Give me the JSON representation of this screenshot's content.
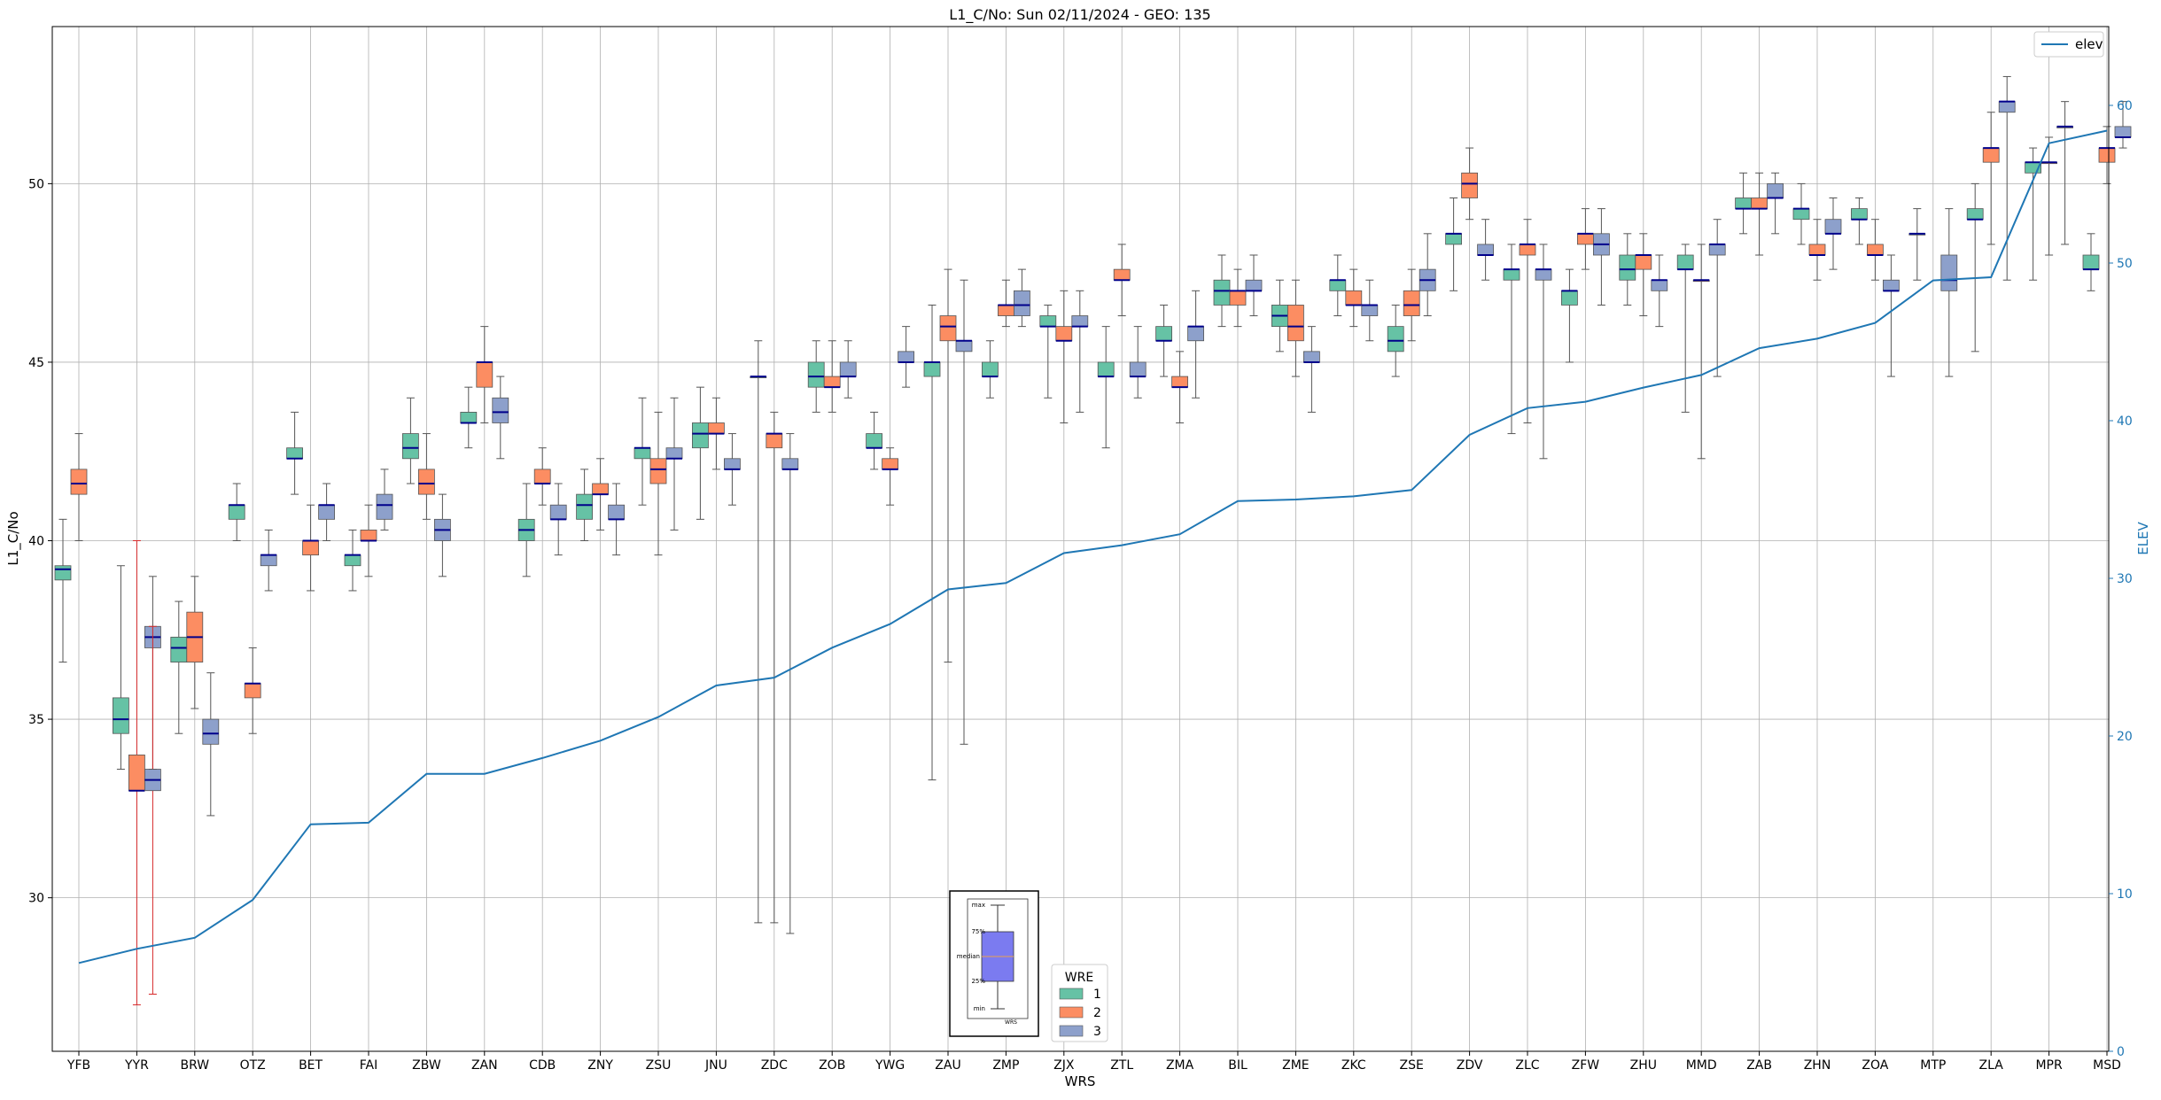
{
  "chart_data": {
    "type": "box",
    "title": "L1_C/No: Sun 02/11/2024 - GEO: 135",
    "xlabel": "WRS",
    "ylabel": "L1_C/No",
    "y2label": "ELEV",
    "ylim": [
      25.7,
      54.4
    ],
    "y2lim": [
      0,
      65
    ],
    "yticks": [
      30,
      35,
      40,
      45,
      50
    ],
    "y2ticks": [
      0,
      10,
      20,
      30,
      40,
      50,
      60
    ],
    "grid": true,
    "categories": [
      "YFB",
      "YYR",
      "BRW",
      "OTZ",
      "BET",
      "FAI",
      "ZBW",
      "ZAN",
      "CDB",
      "ZNY",
      "ZSU",
      "JNU",
      "ZDC",
      "ZOB",
      "YWG",
      "ZAU",
      "ZMP",
      "ZJX",
      "ZTL",
      "ZMA",
      "BIL",
      "ZME",
      "ZKC",
      "ZSE",
      "ZDV",
      "ZLC",
      "ZFW",
      "ZHU",
      "MMD",
      "ZAB",
      "ZHN",
      "ZOA",
      "MTP",
      "ZLA",
      "MPR",
      "MSD"
    ],
    "colors": {
      "1": "#66c2a5",
      "2": "#fc8d62",
      "3": "#8da0cb",
      "median": "#00008b",
      "elev": "#1f77b4",
      "whisker": "#555555",
      "anomaly_whisker": "#d62728"
    },
    "legend": {
      "title": "WRE",
      "entries": [
        "1",
        "2",
        "3"
      ],
      "placement": "lower-center"
    },
    "elev_legend": {
      "label": "elev",
      "placement": "upper-right"
    },
    "inset_key": {
      "labels": [
        "max",
        "75%",
        "median",
        "25%",
        "min"
      ],
      "xlabel": "WRS"
    },
    "boxes": [
      {
        "wrs": "YFB",
        "wre": "1",
        "min": 36.6,
        "q1": 38.9,
        "med": 39.2,
        "q3": 39.3,
        "max": 40.6
      },
      {
        "wrs": "YFB",
        "wre": "2",
        "min": 40.0,
        "q1": 41.3,
        "med": 41.6,
        "q3": 42.0,
        "max": 43.0
      },
      {
        "wrs": "YYR",
        "wre": "3",
        "min": 33.6,
        "q1": 37.0,
        "med": 37.3,
        "q3": 37.6,
        "max": 39.0
      },
      {
        "wrs": "YYR",
        "wre": "1",
        "min": 33.6,
        "q1": 34.6,
        "med": 35.0,
        "q3": 35.6,
        "max": 39.3
      },
      {
        "wrs": "YYR",
        "wre": "2",
        "min": 27.0,
        "q1": 33.0,
        "med": 33.0,
        "q3": 34.0,
        "max": 40.0,
        "anomaly": true
      },
      {
        "wrs": "YYR",
        "wre": "3",
        "min": 27.3,
        "q1": 33.0,
        "med": 33.3,
        "q3": 33.6,
        "max": 37.6,
        "anomaly": true
      },
      {
        "wrs": "BRW",
        "wre": "1",
        "min": 34.6,
        "q1": 36.6,
        "med": 37.0,
        "q3": 37.3,
        "max": 38.3
      },
      {
        "wrs": "BRW",
        "wre": "2",
        "min": 35.3,
        "q1": 36.6,
        "med": 37.3,
        "q3": 38.0,
        "max": 39.0
      },
      {
        "wrs": "BRW",
        "wre": "3",
        "min": 32.3,
        "q1": 34.3,
        "med": 34.6,
        "q3": 35.0,
        "max": 36.3
      },
      {
        "wrs": "OTZ",
        "wre": "1",
        "min": 40.0,
        "q1": 40.6,
        "med": 41.0,
        "q3": 41.0,
        "max": 41.6
      },
      {
        "wrs": "OTZ",
        "wre": "2",
        "min": 34.6,
        "q1": 35.6,
        "med": 36.0,
        "q3": 36.0,
        "max": 37.0
      },
      {
        "wrs": "OTZ",
        "wre": "3",
        "min": 38.6,
        "q1": 39.3,
        "med": 39.6,
        "q3": 39.6,
        "max": 40.3
      },
      {
        "wrs": "BET",
        "wre": "2",
        "min": 38.6,
        "q1": 39.6,
        "med": 40.0,
        "q3": 40.0,
        "max": 41.0
      },
      {
        "wrs": "BET",
        "wre": "1",
        "min": 41.3,
        "q1": 42.3,
        "med": 42.3,
        "q3": 42.6,
        "max": 43.6
      },
      {
        "wrs": "BET",
        "wre": "3",
        "min": 40.0,
        "q1": 40.6,
        "med": 41.0,
        "q3": 41.0,
        "max": 41.6
      },
      {
        "wrs": "FAI",
        "wre": "1",
        "min": 38.6,
        "q1": 39.3,
        "med": 39.6,
        "q3": 39.6,
        "max": 40.3
      },
      {
        "wrs": "FAI",
        "wre": "2",
        "min": 39.0,
        "q1": 40.0,
        "med": 40.0,
        "q3": 40.3,
        "max": 41.0
      },
      {
        "wrs": "FAI",
        "wre": "3",
        "min": 40.3,
        "q1": 40.6,
        "med": 41.0,
        "q3": 41.3,
        "max": 42.0
      },
      {
        "wrs": "ZBW",
        "wre": "1",
        "min": 41.6,
        "q1": 42.3,
        "med": 42.6,
        "q3": 43.0,
        "max": 44.0
      },
      {
        "wrs": "ZBW",
        "wre": "2",
        "min": 40.6,
        "q1": 41.3,
        "med": 41.6,
        "q3": 42.0,
        "max": 43.0
      },
      {
        "wrs": "ZBW",
        "wre": "3",
        "min": 39.0,
        "q1": 40.0,
        "med": 40.3,
        "q3": 40.6,
        "max": 41.3
      },
      {
        "wrs": "ZAN",
        "wre": "1",
        "min": 42.6,
        "q1": 43.3,
        "med": 43.3,
        "q3": 43.6,
        "max": 44.3
      },
      {
        "wrs": "ZAN",
        "wre": "2",
        "min": 43.3,
        "q1": 44.3,
        "med": 45.0,
        "q3": 45.0,
        "max": 46.0
      },
      {
        "wrs": "ZAN",
        "wre": "3",
        "min": 42.3,
        "q1": 43.3,
        "med": 43.6,
        "q3": 44.0,
        "max": 44.6
      },
      {
        "wrs": "CDB",
        "wre": "1",
        "min": 39.0,
        "q1": 40.0,
        "med": 40.3,
        "q3": 40.6,
        "max": 41.6
      },
      {
        "wrs": "CDB",
        "wre": "2",
        "min": 41.0,
        "q1": 41.6,
        "med": 41.6,
        "q3": 42.0,
        "max": 42.6
      },
      {
        "wrs": "CDB",
        "wre": "3",
        "min": 39.6,
        "q1": 40.6,
        "med": 40.6,
        "q3": 41.0,
        "max": 41.6
      },
      {
        "wrs": "ZNY",
        "wre": "1",
        "min": 40.0,
        "q1": 40.6,
        "med": 41.0,
        "q3": 41.3,
        "max": 42.0
      },
      {
        "wrs": "ZNY",
        "wre": "2",
        "min": 40.3,
        "q1": 41.3,
        "med": 41.3,
        "q3": 41.6,
        "max": 42.3
      },
      {
        "wrs": "ZNY",
        "wre": "3",
        "min": 39.6,
        "q1": 40.6,
        "med": 40.6,
        "q3": 41.0,
        "max": 41.6
      },
      {
        "wrs": "ZSU",
        "wre": "1",
        "min": 41.0,
        "q1": 42.3,
        "med": 42.6,
        "q3": 42.6,
        "max": 44.0
      },
      {
        "wrs": "ZSU",
        "wre": "2",
        "min": 39.6,
        "q1": 41.6,
        "med": 42.0,
        "q3": 42.3,
        "max": 43.6
      },
      {
        "wrs": "ZSU",
        "wre": "3",
        "min": 40.3,
        "q1": 42.3,
        "med": 42.3,
        "q3": 42.6,
        "max": 44.0
      },
      {
        "wrs": "JNU",
        "wre": "1",
        "min": 40.6,
        "q1": 42.6,
        "med": 43.0,
        "q3": 43.3,
        "max": 44.3
      },
      {
        "wrs": "JNU",
        "wre": "2",
        "min": 42.0,
        "q1": 43.0,
        "med": 43.0,
        "q3": 43.3,
        "max": 44.0
      },
      {
        "wrs": "JNU",
        "wre": "3",
        "min": 41.0,
        "q1": 42.0,
        "med": 42.0,
        "q3": 42.3,
        "max": 43.0
      },
      {
        "wrs": "ZDC",
        "wre": "1",
        "min": 29.3,
        "q1": 44.6,
        "med": 44.6,
        "q3": 44.6,
        "max": 45.6
      },
      {
        "wrs": "ZDC",
        "wre": "2",
        "min": 29.3,
        "q1": 42.6,
        "med": 43.0,
        "q3": 43.0,
        "max": 43.6
      },
      {
        "wrs": "ZDC",
        "wre": "3",
        "min": 29.0,
        "q1": 42.0,
        "med": 42.0,
        "q3": 42.3,
        "max": 43.0
      },
      {
        "wrs": "ZOB",
        "wre": "1",
        "min": 43.6,
        "q1": 44.3,
        "med": 44.6,
        "q3": 45.0,
        "max": 45.6
      },
      {
        "wrs": "ZOB",
        "wre": "2",
        "min": 43.6,
        "q1": 44.3,
        "med": 44.3,
        "q3": 44.6,
        "max": 45.6
      },
      {
        "wrs": "ZOB",
        "wre": "3",
        "min": 44.0,
        "q1": 44.6,
        "med": 44.6,
        "q3": 45.0,
        "max": 45.6
      },
      {
        "wrs": "YWG",
        "wre": "1",
        "min": 42.0,
        "q1": 42.6,
        "med": 42.6,
        "q3": 43.0,
        "max": 43.6
      },
      {
        "wrs": "YWG",
        "wre": "2",
        "min": 41.0,
        "q1": 42.0,
        "med": 42.0,
        "q3": 42.3,
        "max": 42.6
      },
      {
        "wrs": "YWG",
        "wre": "3",
        "min": 44.3,
        "q1": 45.0,
        "med": 45.0,
        "q3": 45.3,
        "max": 46.0
      },
      {
        "wrs": "ZAU",
        "wre": "1",
        "min": 33.3,
        "q1": 44.6,
        "med": 45.0,
        "q3": 45.0,
        "max": 46.6
      },
      {
        "wrs": "ZAU",
        "wre": "2",
        "min": 36.6,
        "q1": 45.6,
        "med": 46.0,
        "q3": 46.3,
        "max": 47.6
      },
      {
        "wrs": "ZAU",
        "wre": "3",
        "min": 34.3,
        "q1": 45.3,
        "med": 45.6,
        "q3": 45.6,
        "max": 47.3
      },
      {
        "wrs": "ZMP",
        "wre": "1",
        "min": 44.0,
        "q1": 44.6,
        "med": 44.6,
        "q3": 45.0,
        "max": 45.6
      },
      {
        "wrs": "ZMP",
        "wre": "2",
        "min": 46.0,
        "q1": 46.3,
        "med": 46.6,
        "q3": 46.6,
        "max": 47.3
      },
      {
        "wrs": "ZMP",
        "wre": "3",
        "min": 46.0,
        "q1": 46.3,
        "med": 46.6,
        "q3": 47.0,
        "max": 47.6
      },
      {
        "wrs": "ZJX",
        "wre": "1",
        "min": 44.0,
        "q1": 46.0,
        "med": 46.0,
        "q3": 46.3,
        "max": 46.6
      },
      {
        "wrs": "ZJX",
        "wre": "2",
        "min": 43.3,
        "q1": 45.6,
        "med": 45.6,
        "q3": 46.0,
        "max": 47.0
      },
      {
        "wrs": "ZJX",
        "wre": "3",
        "min": 43.6,
        "q1": 46.0,
        "med": 46.0,
        "q3": 46.3,
        "max": 47.0
      },
      {
        "wrs": "ZTL",
        "wre": "1",
        "min": 42.6,
        "q1": 44.6,
        "med": 44.6,
        "q3": 45.0,
        "max": 46.0
      },
      {
        "wrs": "ZTL",
        "wre": "2",
        "min": 46.3,
        "q1": 47.3,
        "med": 47.3,
        "q3": 47.6,
        "max": 48.3
      },
      {
        "wrs": "ZTL",
        "wre": "3",
        "min": 44.0,
        "q1": 44.6,
        "med": 44.6,
        "q3": 45.0,
        "max": 46.0
      },
      {
        "wrs": "ZMA",
        "wre": "1",
        "min": 44.6,
        "q1": 45.6,
        "med": 45.6,
        "q3": 46.0,
        "max": 46.6
      },
      {
        "wrs": "ZMA",
        "wre": "2",
        "min": 43.3,
        "q1": 44.3,
        "med": 44.3,
        "q3": 44.6,
        "max": 45.3
      },
      {
        "wrs": "ZMA",
        "wre": "3",
        "min": 44.0,
        "q1": 45.6,
        "med": 46.0,
        "q3": 46.0,
        "max": 47.0
      },
      {
        "wrs": "BIL",
        "wre": "1",
        "min": 46.0,
        "q1": 46.6,
        "med": 47.0,
        "q3": 47.3,
        "max": 48.0
      },
      {
        "wrs": "BIL",
        "wre": "2",
        "min": 46.0,
        "q1": 46.6,
        "med": 47.0,
        "q3": 47.0,
        "max": 47.6
      },
      {
        "wrs": "BIL",
        "wre": "3",
        "min": 46.3,
        "q1": 47.0,
        "med": 47.0,
        "q3": 47.3,
        "max": 48.0
      },
      {
        "wrs": "ZME",
        "wre": "1",
        "min": 45.3,
        "q1": 46.0,
        "med": 46.3,
        "q3": 46.6,
        "max": 47.3
      },
      {
        "wrs": "ZME",
        "wre": "2",
        "min": 44.6,
        "q1": 45.6,
        "med": 46.0,
        "q3": 46.6,
        "max": 47.3
      },
      {
        "wrs": "ZME",
        "wre": "3",
        "min": 43.6,
        "q1": 45.0,
        "med": 45.0,
        "q3": 45.3,
        "max": 46.0
      },
      {
        "wrs": "ZKC",
        "wre": "1",
        "min": 46.3,
        "q1": 47.0,
        "med": 47.3,
        "q3": 47.3,
        "max": 48.0
      },
      {
        "wrs": "ZKC",
        "wre": "2",
        "min": 46.0,
        "q1": 46.6,
        "med": 46.6,
        "q3": 47.0,
        "max": 47.6
      },
      {
        "wrs": "ZKC",
        "wre": "3",
        "min": 45.6,
        "q1": 46.3,
        "med": 46.6,
        "q3": 46.6,
        "max": 47.3
      },
      {
        "wrs": "ZSE",
        "wre": "1",
        "min": 44.6,
        "q1": 45.3,
        "med": 45.6,
        "q3": 46.0,
        "max": 46.6
      },
      {
        "wrs": "ZSE",
        "wre": "2",
        "min": 45.6,
        "q1": 46.3,
        "med": 46.6,
        "q3": 47.0,
        "max": 47.6
      },
      {
        "wrs": "ZSE",
        "wre": "3",
        "min": 46.3,
        "q1": 47.0,
        "med": 47.3,
        "q3": 47.6,
        "max": 48.6
      },
      {
        "wrs": "ZDV",
        "wre": "1",
        "min": 47.0,
        "q1": 48.3,
        "med": 48.6,
        "q3": 48.6,
        "max": 49.6
      },
      {
        "wrs": "ZDV",
        "wre": "2",
        "min": 49.0,
        "q1": 49.6,
        "med": 50.0,
        "q3": 50.3,
        "max": 51.0
      },
      {
        "wrs": "ZDV",
        "wre": "3",
        "min": 47.3,
        "q1": 48.0,
        "med": 48.0,
        "q3": 48.3,
        "max": 49.0
      },
      {
        "wrs": "ZLC",
        "wre": "1",
        "min": 43.0,
        "q1": 47.3,
        "med": 47.6,
        "q3": 47.6,
        "max": 48.3
      },
      {
        "wrs": "ZLC",
        "wre": "2",
        "min": 43.3,
        "q1": 48.0,
        "med": 48.3,
        "q3": 48.3,
        "max": 49.0
      },
      {
        "wrs": "ZLC",
        "wre": "3",
        "min": 42.3,
        "q1": 47.3,
        "med": 47.6,
        "q3": 47.6,
        "max": 48.3
      },
      {
        "wrs": "ZFW",
        "wre": "1",
        "min": 45.0,
        "q1": 46.6,
        "med": 47.0,
        "q3": 47.0,
        "max": 47.6
      },
      {
        "wrs": "ZFW",
        "wre": "2",
        "min": 47.6,
        "q1": 48.3,
        "med": 48.6,
        "q3": 48.6,
        "max": 49.3
      },
      {
        "wrs": "ZFW",
        "wre": "3",
        "min": 46.6,
        "q1": 48.0,
        "med": 48.3,
        "q3": 48.6,
        "max": 49.3
      },
      {
        "wrs": "ZHU",
        "wre": "1",
        "min": 46.6,
        "q1": 47.3,
        "med": 47.6,
        "q3": 48.0,
        "max": 48.6
      },
      {
        "wrs": "ZHU",
        "wre": "2",
        "min": 46.3,
        "q1": 47.6,
        "med": 48.0,
        "q3": 48.0,
        "max": 48.6
      },
      {
        "wrs": "ZHU",
        "wre": "3",
        "min": 46.0,
        "q1": 47.0,
        "med": 47.3,
        "q3": 47.3,
        "max": 48.0
      },
      {
        "wrs": "MMD",
        "wre": "1",
        "min": 43.6,
        "q1": 47.6,
        "med": 47.6,
        "q3": 48.0,
        "max": 48.3
      },
      {
        "wrs": "MMD",
        "wre": "2",
        "min": 42.3,
        "q1": 47.3,
        "med": 47.3,
        "q3": 47.3,
        "max": 48.3
      },
      {
        "wrs": "MMD",
        "wre": "3",
        "min": 44.6,
        "q1": 48.0,
        "med": 48.3,
        "q3": 48.3,
        "max": 49.0
      },
      {
        "wrs": "ZAB",
        "wre": "1",
        "min": 48.6,
        "q1": 49.3,
        "med": 49.3,
        "q3": 49.6,
        "max": 50.3
      },
      {
        "wrs": "ZAB",
        "wre": "2",
        "min": 48.0,
        "q1": 49.3,
        "med": 49.3,
        "q3": 49.6,
        "max": 50.3
      },
      {
        "wrs": "ZAB",
        "wre": "3",
        "min": 48.6,
        "q1": 49.6,
        "med": 49.6,
        "q3": 50.0,
        "max": 50.3
      },
      {
        "wrs": "ZHN",
        "wre": "1",
        "min": 48.3,
        "q1": 49.0,
        "med": 49.3,
        "q3": 49.3,
        "max": 50.0
      },
      {
        "wrs": "ZHN",
        "wre": "2",
        "min": 47.3,
        "q1": 48.0,
        "med": 48.0,
        "q3": 48.3,
        "max": 49.0
      },
      {
        "wrs": "ZHN",
        "wre": "3",
        "min": 47.6,
        "q1": 48.6,
        "med": 48.6,
        "q3": 49.0,
        "max": 49.6
      },
      {
        "wrs": "ZOA",
        "wre": "1",
        "min": 48.3,
        "q1": 49.0,
        "med": 49.0,
        "q3": 49.3,
        "max": 49.6
      },
      {
        "wrs": "ZOA",
        "wre": "2",
        "min": 47.3,
        "q1": 48.0,
        "med": 48.0,
        "q3": 48.3,
        "max": 49.0
      },
      {
        "wrs": "ZOA",
        "wre": "3",
        "min": 44.6,
        "q1": 47.0,
        "med": 47.0,
        "q3": 47.3,
        "max": 48.0
      },
      {
        "wrs": "MTP",
        "wre": "1",
        "min": 47.3,
        "q1": 48.6,
        "med": 48.6,
        "q3": 48.6,
        "max": 49.3
      },
      {
        "wrs": "MTP",
        "wre": "3",
        "min": 44.6,
        "q1": 47.0,
        "med": 47.3,
        "q3": 48.0,
        "max": 49.3
      },
      {
        "wrs": "ZLA",
        "wre": "1",
        "min": 45.3,
        "q1": 49.0,
        "med": 49.0,
        "q3": 49.3,
        "max": 50.0
      },
      {
        "wrs": "ZLA",
        "wre": "2",
        "min": 48.3,
        "q1": 50.6,
        "med": 51.0,
        "q3": 51.0,
        "max": 52.0
      },
      {
        "wrs": "ZLA",
        "wre": "3",
        "min": 47.3,
        "q1": 52.0,
        "med": 52.3,
        "q3": 52.3,
        "max": 53.0
      },
      {
        "wrs": "MPR",
        "wre": "1",
        "min": 47.3,
        "q1": 50.3,
        "med": 50.6,
        "q3": 50.6,
        "max": 51.0
      },
      {
        "wrs": "MPR",
        "wre": "2",
        "min": 48.0,
        "q1": 50.6,
        "med": 50.6,
        "q3": 50.6,
        "max": 51.3
      },
      {
        "wrs": "MPR",
        "wre": "3",
        "min": 48.3,
        "q1": 51.6,
        "med": 51.6,
        "q3": 51.6,
        "max": 52.3
      },
      {
        "wrs": "MSD",
        "wre": "1",
        "min": 47.0,
        "q1": 47.6,
        "med": 47.6,
        "q3": 48.0,
        "max": 48.6
      },
      {
        "wrs": "MSD",
        "wre": "2",
        "min": 50.0,
        "q1": 50.6,
        "med": 51.0,
        "q3": 51.0,
        "max": 51.6
      },
      {
        "wrs": "MSD",
        "wre": "3",
        "min": 51.0,
        "q1": 51.3,
        "med": 51.3,
        "q3": 51.6,
        "max": 52.3
      }
    ],
    "elev": {
      "name": "elev",
      "x": [
        "YFB",
        "YYR",
        "BRW",
        "OTZ",
        "BET",
        "FAI",
        "ZBW",
        "ZAN",
        "CDB",
        "ZNY",
        "ZSU",
        "JNU",
        "ZDC",
        "ZOB",
        "YWG",
        "ZAU",
        "ZMP",
        "ZJX",
        "ZTL",
        "ZMA",
        "BIL",
        "ZME",
        "ZKC",
        "ZSE",
        "ZDV",
        "ZLC",
        "ZFW",
        "ZHU",
        "MMD",
        "ZAB",
        "ZHN",
        "ZOA",
        "MTP",
        "ZLA",
        "MPR",
        "MSD"
      ],
      "values": [
        5.6,
        6.5,
        7.2,
        9.6,
        14.4,
        14.5,
        17.6,
        17.6,
        18.6,
        19.7,
        21.2,
        23.2,
        23.7,
        25.6,
        27.1,
        29.3,
        29.7,
        31.6,
        32.1,
        32.8,
        34.9,
        35.0,
        35.2,
        35.6,
        39.1,
        40.8,
        41.2,
        42.1,
        42.9,
        44.6,
        45.2,
        46.2,
        48.9,
        49.1,
        57.6,
        58.4
      ]
    }
  }
}
